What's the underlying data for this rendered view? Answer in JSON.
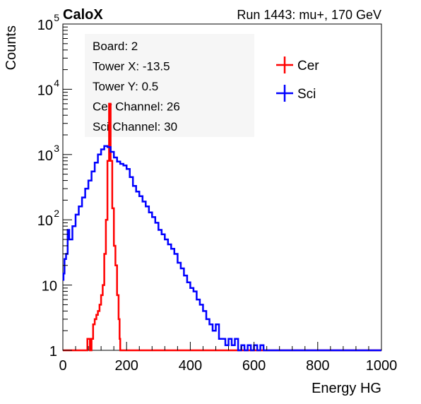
{
  "header": {
    "left": "CaloX",
    "right": "Run 1443: mu+, 170 GeV"
  },
  "info_box": {
    "lines": [
      "Board: 2",
      "Tower X: -13.5",
      "Tower Y: 0.5",
      "Cer Channel: 26",
      "Sci Channel: 30"
    ]
  },
  "chart_data": {
    "type": "line",
    "xlabel": "Energy HG",
    "ylabel": "Counts",
    "xlim": [
      0,
      1000
    ],
    "ylim": [
      1,
      100000
    ],
    "yscale": "log",
    "x_ticks": [
      0,
      200,
      400,
      600,
      800,
      1000
    ],
    "y_ticks": [
      {
        "value": 1,
        "label": "1"
      },
      {
        "value": 10,
        "label": "10"
      },
      {
        "value": 100,
        "label": "10",
        "exp": "2"
      },
      {
        "value": 1000,
        "label": "10",
        "exp": "3"
      },
      {
        "value": 10000,
        "label": "10",
        "exp": "4"
      },
      {
        "value": 100000,
        "label": "10",
        "exp": "5"
      }
    ],
    "legend_position": "top-right",
    "series": [
      {
        "name": "Cer",
        "color": "#ff0000",
        "x": [
          0,
          75,
          77,
          80,
          85,
          90,
          95,
          100,
          105,
          110,
          115,
          120,
          125,
          130,
          135,
          140,
          145,
          150,
          155,
          160,
          165,
          170,
          175,
          178,
          180,
          200,
          300,
          400,
          500,
          510,
          600,
          700,
          800,
          900,
          1000
        ],
        "y": [
          1,
          1,
          1.5,
          1.5,
          1,
          1.5,
          2.5,
          3,
          3.5,
          4,
          5,
          7,
          10,
          30,
          100,
          800,
          6000,
          800,
          150,
          40,
          20,
          7,
          3,
          1.5,
          1,
          1,
          1,
          1,
          1,
          1,
          1,
          1,
          1,
          1,
          1
        ]
      },
      {
        "name": "Sci",
        "color": "#0000ff",
        "x": [
          0,
          2,
          5,
          10,
          15,
          20,
          30,
          40,
          50,
          60,
          70,
          80,
          90,
          100,
          110,
          120,
          130,
          140,
          150,
          160,
          170,
          180,
          190,
          200,
          210,
          220,
          230,
          240,
          250,
          260,
          270,
          280,
          290,
          300,
          310,
          320,
          330,
          340,
          350,
          360,
          370,
          380,
          390,
          400,
          410,
          420,
          430,
          440,
          450,
          460,
          470,
          480,
          490,
          500,
          510,
          520,
          530,
          540,
          550,
          560,
          570,
          580,
          590,
          600,
          610,
          620,
          630,
          640,
          700,
          800,
          900,
          1000
        ],
        "y": [
          12,
          15,
          25,
          30,
          70,
          50,
          80,
          120,
          160,
          220,
          300,
          400,
          550,
          750,
          1000,
          1200,
          1350,
          1300,
          1100,
          900,
          780,
          720,
          680,
          600,
          450,
          330,
          270,
          230,
          190,
          160,
          130,
          110,
          90,
          70,
          60,
          50,
          42,
          36,
          30,
          22,
          18,
          14,
          11,
          9,
          8,
          6,
          5,
          4,
          3,
          2.5,
          2,
          2.5,
          1.5,
          1.5,
          1.2,
          1.5,
          1.2,
          1.5,
          1,
          1.2,
          1,
          1.2,
          1,
          1.2,
          1,
          1.2,
          1,
          1,
          1,
          1,
          1,
          1
        ]
      }
    ]
  }
}
